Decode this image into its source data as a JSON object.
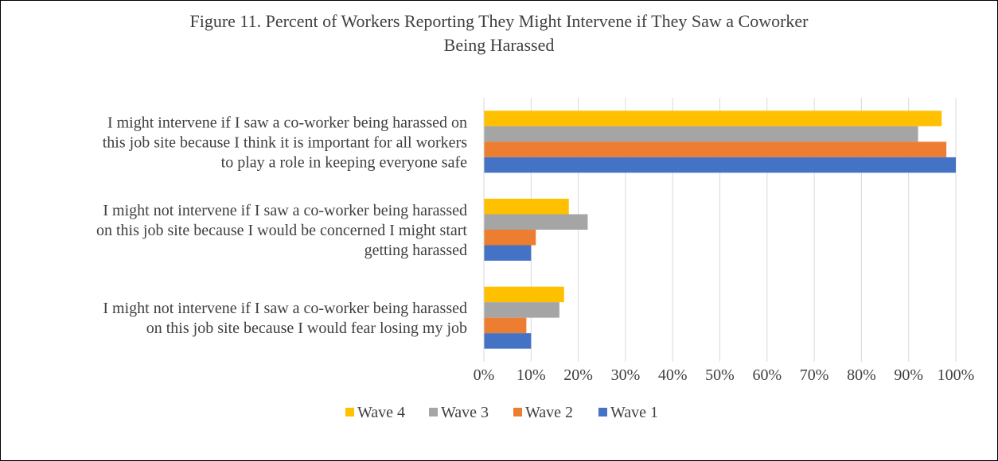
{
  "chart_data": {
    "type": "bar",
    "orientation": "horizontal",
    "title_lines": [
      "Figure 11. Percent of Workers Reporting They Might Intervene if They Saw a Coworker",
      "Being Harassed"
    ],
    "categories": [
      {
        "label_lines": [
          "I might intervene if I saw a co-worker being harassed on",
          "this job site because I think it is important for all workers",
          "to play a role in keeping everyone safe"
        ]
      },
      {
        "label_lines": [
          "I might not intervene if I saw a co-worker being harassed",
          "on this job site because I would be concerned I might start",
          "getting harassed"
        ]
      },
      {
        "label_lines": [
          "I might not intervene if I saw a co-worker being harassed",
          "on this job site because I would fear losing my job"
        ]
      }
    ],
    "series": [
      {
        "name": "Wave 4",
        "color": "#FFC000",
        "values": [
          97,
          18,
          17
        ]
      },
      {
        "name": "Wave 3",
        "color": "#A5A5A5",
        "values": [
          92,
          22,
          16
        ]
      },
      {
        "name": "Wave 2",
        "color": "#ED7D31",
        "values": [
          98,
          11,
          9
        ]
      },
      {
        "name": "Wave 1",
        "color": "#4472C4",
        "values": [
          100,
          10,
          10
        ]
      }
    ],
    "xlim": [
      0,
      100
    ],
    "x_ticks": [
      "0%",
      "10%",
      "20%",
      "30%",
      "40%",
      "50%",
      "60%",
      "70%",
      "80%",
      "90%",
      "100%"
    ],
    "grid": true,
    "legend_position": "bottom"
  }
}
